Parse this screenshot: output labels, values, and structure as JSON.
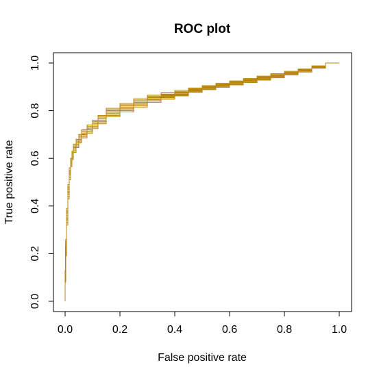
{
  "chart_data": {
    "type": "line",
    "title": "ROC plot",
    "xlabel": "False positive rate",
    "ylabel": "True positive rate",
    "xlim": [
      0,
      1
    ],
    "ylim": [
      0,
      1
    ],
    "x_ticks": [
      0.0,
      0.2,
      0.4,
      0.6,
      0.8,
      1.0
    ],
    "y_ticks": [
      0.0,
      0.2,
      0.4,
      0.6,
      0.8,
      1.0
    ],
    "x_tick_labels": [
      "0.0",
      "0.2",
      "0.4",
      "0.6",
      "0.8",
      "1.0"
    ],
    "y_tick_labels": [
      "0.0",
      "0.2",
      "0.4",
      "0.6",
      "0.8",
      "1.0"
    ],
    "grid": false,
    "legend": "none",
    "color": "#B8860B",
    "series": [
      {
        "x": [
          0,
          0.002,
          0.005,
          0.01,
          0.015,
          0.02,
          0.025,
          0.03,
          0.04,
          0.05,
          0.06,
          0.08,
          0.1,
          0.12,
          0.15,
          0.2,
          0.25,
          0.3,
          0.35,
          0.4,
          0.45,
          0.5,
          0.55,
          0.6,
          0.65,
          0.7,
          0.75,
          0.8,
          0.85,
          0.9,
          0.95,
          1.0
        ],
        "y": [
          0,
          0.1,
          0.22,
          0.36,
          0.46,
          0.54,
          0.58,
          0.61,
          0.64,
          0.66,
          0.68,
          0.7,
          0.72,
          0.74,
          0.76,
          0.79,
          0.81,
          0.83,
          0.85,
          0.86,
          0.87,
          0.885,
          0.895,
          0.905,
          0.915,
          0.925,
          0.935,
          0.945,
          0.957,
          0.968,
          0.982,
          1.0
        ]
      },
      {
        "x": [
          0,
          0.002,
          0.005,
          0.01,
          0.015,
          0.02,
          0.025,
          0.03,
          0.04,
          0.05,
          0.06,
          0.08,
          0.1,
          0.12,
          0.15,
          0.2,
          0.25,
          0.3,
          0.35,
          0.4,
          0.45,
          0.5,
          0.55,
          0.6,
          0.65,
          0.7,
          0.75,
          0.8,
          0.85,
          0.9,
          0.95,
          1.0
        ],
        "y": [
          0,
          0.12,
          0.25,
          0.38,
          0.48,
          0.55,
          0.6,
          0.62,
          0.65,
          0.67,
          0.69,
          0.71,
          0.73,
          0.75,
          0.77,
          0.8,
          0.82,
          0.84,
          0.855,
          0.865,
          0.875,
          0.89,
          0.9,
          0.91,
          0.92,
          0.93,
          0.94,
          0.95,
          0.96,
          0.972,
          0.985,
          1.0
        ]
      },
      {
        "x": [
          0,
          0.002,
          0.005,
          0.01,
          0.015,
          0.02,
          0.025,
          0.03,
          0.04,
          0.05,
          0.06,
          0.08,
          0.1,
          0.12,
          0.15,
          0.2,
          0.25,
          0.3,
          0.35,
          0.4,
          0.45,
          0.5,
          0.55,
          0.6,
          0.65,
          0.7,
          0.75,
          0.8,
          0.85,
          0.9,
          0.95,
          1.0
        ],
        "y": [
          0,
          0.08,
          0.2,
          0.33,
          0.44,
          0.52,
          0.57,
          0.6,
          0.63,
          0.65,
          0.67,
          0.69,
          0.71,
          0.73,
          0.75,
          0.78,
          0.8,
          0.82,
          0.84,
          0.85,
          0.865,
          0.88,
          0.89,
          0.9,
          0.91,
          0.92,
          0.93,
          0.94,
          0.953,
          0.965,
          0.98,
          1.0
        ]
      },
      {
        "x": [
          0,
          0.002,
          0.005,
          0.01,
          0.015,
          0.02,
          0.025,
          0.03,
          0.04,
          0.05,
          0.06,
          0.08,
          0.1,
          0.12,
          0.15,
          0.2,
          0.25,
          0.3,
          0.35,
          0.4,
          0.45,
          0.5,
          0.55,
          0.6,
          0.65,
          0.7,
          0.75,
          0.8,
          0.85,
          0.9,
          0.95,
          1.0
        ],
        "y": [
          0,
          0.11,
          0.24,
          0.37,
          0.47,
          0.55,
          0.59,
          0.62,
          0.65,
          0.68,
          0.7,
          0.72,
          0.74,
          0.76,
          0.78,
          0.81,
          0.83,
          0.85,
          0.865,
          0.875,
          0.885,
          0.895,
          0.905,
          0.915,
          0.925,
          0.935,
          0.945,
          0.955,
          0.965,
          0.975,
          0.988,
          1.0
        ]
      },
      {
        "x": [
          0,
          0.002,
          0.005,
          0.01,
          0.015,
          0.02,
          0.025,
          0.03,
          0.04,
          0.05,
          0.06,
          0.08,
          0.1,
          0.12,
          0.15,
          0.2,
          0.25,
          0.3,
          0.35,
          0.4,
          0.45,
          0.5,
          0.55,
          0.6,
          0.65,
          0.7,
          0.75,
          0.8,
          0.85,
          0.9,
          0.95,
          1.0
        ],
        "y": [
          0,
          0.09,
          0.21,
          0.34,
          0.45,
          0.53,
          0.575,
          0.605,
          0.635,
          0.655,
          0.675,
          0.695,
          0.715,
          0.735,
          0.755,
          0.785,
          0.805,
          0.825,
          0.845,
          0.855,
          0.87,
          0.882,
          0.893,
          0.903,
          0.913,
          0.923,
          0.933,
          0.943,
          0.955,
          0.966,
          0.981,
          1.0
        ]
      },
      {
        "x": [
          0,
          0.002,
          0.005,
          0.01,
          0.015,
          0.02,
          0.025,
          0.03,
          0.04,
          0.05,
          0.06,
          0.08,
          0.1,
          0.12,
          0.15,
          0.2,
          0.25,
          0.3,
          0.35,
          0.4,
          0.45,
          0.5,
          0.55,
          0.6,
          0.65,
          0.7,
          0.75,
          0.8,
          0.85,
          0.9,
          0.95,
          1.0
        ],
        "y": [
          0,
          0.13,
          0.26,
          0.39,
          0.49,
          0.56,
          0.6,
          0.63,
          0.66,
          0.68,
          0.7,
          0.72,
          0.74,
          0.76,
          0.78,
          0.805,
          0.825,
          0.845,
          0.86,
          0.87,
          0.88,
          0.892,
          0.902,
          0.912,
          0.922,
          0.932,
          0.942,
          0.952,
          0.962,
          0.974,
          0.987,
          1.0
        ]
      },
      {
        "x": [
          0,
          0.002,
          0.005,
          0.01,
          0.015,
          0.02,
          0.025,
          0.03,
          0.04,
          0.05,
          0.06,
          0.08,
          0.1,
          0.12,
          0.15,
          0.2,
          0.25,
          0.3,
          0.35,
          0.4,
          0.45,
          0.5,
          0.55,
          0.6,
          0.65,
          0.7,
          0.75,
          0.8,
          0.85,
          0.9,
          0.95,
          1.0
        ],
        "y": [
          0,
          0.1,
          0.23,
          0.35,
          0.46,
          0.54,
          0.585,
          0.615,
          0.64,
          0.66,
          0.68,
          0.7,
          0.72,
          0.74,
          0.76,
          0.79,
          0.81,
          0.835,
          0.85,
          0.862,
          0.874,
          0.886,
          0.897,
          0.907,
          0.917,
          0.927,
          0.937,
          0.947,
          0.958,
          0.969,
          0.983,
          1.0
        ]
      },
      {
        "x": [
          0,
          0.002,
          0.005,
          0.01,
          0.015,
          0.02,
          0.025,
          0.03,
          0.04,
          0.05,
          0.06,
          0.08,
          0.1,
          0.12,
          0.15,
          0.2,
          0.25,
          0.3,
          0.35,
          0.4,
          0.45,
          0.5,
          0.55,
          0.6,
          0.65,
          0.7,
          0.75,
          0.8,
          0.85,
          0.9,
          0.95,
          1.0
        ],
        "y": [
          0,
          0.085,
          0.19,
          0.32,
          0.43,
          0.51,
          0.565,
          0.595,
          0.625,
          0.645,
          0.665,
          0.685,
          0.705,
          0.725,
          0.745,
          0.775,
          0.795,
          0.815,
          0.835,
          0.848,
          0.862,
          0.876,
          0.888,
          0.898,
          0.908,
          0.918,
          0.928,
          0.938,
          0.95,
          0.962,
          0.978,
          1.0
        ]
      },
      {
        "x": [
          0,
          0.002,
          0.005,
          0.01,
          0.015,
          0.02,
          0.025,
          0.03,
          0.04,
          0.05,
          0.06,
          0.08,
          0.1,
          0.12,
          0.15,
          0.2,
          0.25,
          0.3,
          0.35,
          0.4,
          0.45,
          0.5,
          0.55,
          0.6,
          0.65,
          0.7,
          0.75,
          0.8,
          0.85,
          0.9,
          0.95,
          1.0
        ],
        "y": [
          0,
          0.115,
          0.245,
          0.375,
          0.475,
          0.545,
          0.595,
          0.625,
          0.655,
          0.675,
          0.695,
          0.715,
          0.735,
          0.755,
          0.775,
          0.8,
          0.82,
          0.84,
          0.858,
          0.868,
          0.878,
          0.888,
          0.899,
          0.909,
          0.919,
          0.929,
          0.939,
          0.949,
          0.959,
          0.97,
          0.984,
          1.0
        ]
      },
      {
        "x": [
          0,
          0.002,
          0.005,
          0.01,
          0.015,
          0.02,
          0.025,
          0.03,
          0.04,
          0.05,
          0.06,
          0.08,
          0.1,
          0.12,
          0.15,
          0.2,
          0.25,
          0.3,
          0.35,
          0.4,
          0.45,
          0.5,
          0.55,
          0.6,
          0.65,
          0.7,
          0.75,
          0.8,
          0.85,
          0.9,
          0.95,
          1.0
        ],
        "y": [
          0,
          0.095,
          0.215,
          0.345,
          0.455,
          0.535,
          0.58,
          0.61,
          0.645,
          0.665,
          0.685,
          0.705,
          0.725,
          0.745,
          0.765,
          0.795,
          0.815,
          0.83,
          0.848,
          0.858,
          0.868,
          0.884,
          0.895,
          0.905,
          0.915,
          0.925,
          0.935,
          0.945,
          0.956,
          0.967,
          0.982,
          1.0
        ]
      }
    ]
  }
}
